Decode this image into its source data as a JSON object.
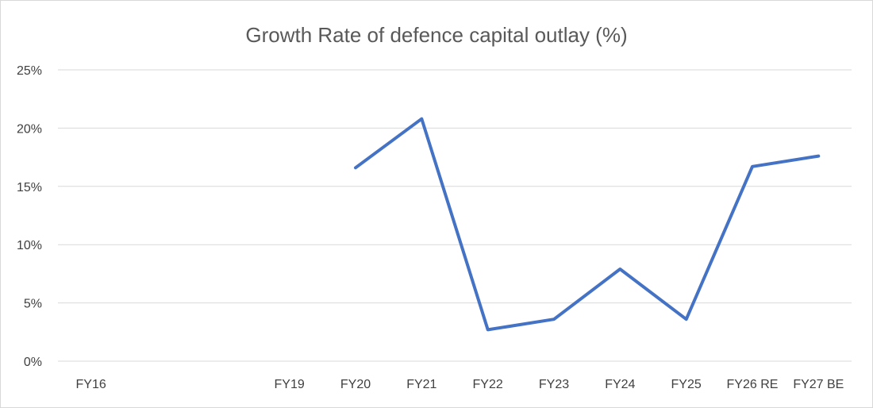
{
  "chart_data": {
    "type": "line",
    "title": "Growth Rate of defence capital outlay (%)",
    "xlabel": "",
    "ylabel": "",
    "categories": [
      "FY16",
      "",
      "",
      "FY19",
      "FY20",
      "FY21",
      "FY22",
      "FY23",
      "FY24",
      "FY25",
      "FY26 RE",
      "FY27 BE"
    ],
    "series": [
      {
        "values": [
          null,
          null,
          null,
          null,
          16.6,
          20.8,
          2.7,
          3.6,
          7.9,
          3.6,
          16.7,
          17.6
        ]
      }
    ],
    "yticks": [
      "0%",
      "5%",
      "10%",
      "15%",
      "20%",
      "25%"
    ],
    "ylim": [
      0,
      25
    ],
    "grid": true,
    "legend": "none",
    "colors": {
      "series": "#4472C4"
    }
  }
}
